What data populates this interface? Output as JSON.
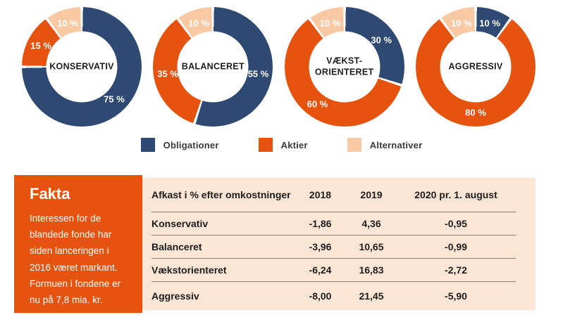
{
  "colors": {
    "obligationer": "#2e4a72",
    "aktier": "#e5530f",
    "alternativer": "#f9c9a3",
    "table_bg": "#fbe6d6",
    "fakta_bg": "#e5530f",
    "text_dark": "#1d1d1b"
  },
  "donuts": [
    {
      "title": "KONSERVATIV",
      "segments": [
        {
          "color_key": "obligationer",
          "pct": 75,
          "label": "75 %"
        },
        {
          "color_key": "aktier",
          "pct": 15,
          "label": "15 %"
        },
        {
          "color_key": "alternativer",
          "pct": 10,
          "label": "10 %"
        }
      ]
    },
    {
      "title": "BALANCERET",
      "segments": [
        {
          "color_key": "obligationer",
          "pct": 55,
          "label": "55 %"
        },
        {
          "color_key": "aktier",
          "pct": 35,
          "label": "35 %"
        },
        {
          "color_key": "alternativer",
          "pct": 10,
          "label": "10 %"
        }
      ]
    },
    {
      "title": "VÆKST-\nORIENTERET",
      "segments": [
        {
          "color_key": "obligationer",
          "pct": 30,
          "label": "30 %"
        },
        {
          "color_key": "aktier",
          "pct": 60,
          "label": "60 %"
        },
        {
          "color_key": "alternativer",
          "pct": 10,
          "label": "10 %"
        }
      ]
    },
    {
      "title": "AGGRESSIV",
      "segments": [
        {
          "color_key": "obligationer",
          "pct": 10,
          "label": "10 %"
        },
        {
          "color_key": "aktier",
          "pct": 80,
          "label": "80 %"
        },
        {
          "color_key": "alternativer",
          "pct": 10,
          "label": "10 %"
        }
      ]
    }
  ],
  "legend": [
    {
      "label": "Obligationer",
      "color_key": "obligationer"
    },
    {
      "label": "Aktier",
      "color_key": "aktier"
    },
    {
      "label": "Alternativer",
      "color_key": "alternativer"
    }
  ],
  "fakta": {
    "title": "Fakta",
    "body": "Interessen for de blandede fonde har siden lanceringen i 2016 været markant. Formuen i fondene er nu på 7,8 mia. kr."
  },
  "table": {
    "header_label": "Afkast i % efter omkostninger",
    "columns": [
      "2018",
      "2019",
      "2020 pr. 1. august"
    ],
    "rows": [
      {
        "label": "Konservativ",
        "values": [
          "-1,86",
          "4,36",
          "-0,95"
        ]
      },
      {
        "label": "Balanceret",
        "values": [
          "-3,96",
          "10,65",
          "-0,99"
        ]
      },
      {
        "label": "Vækstorienteret",
        "values": [
          "-6,24",
          "16,83",
          "-2,72"
        ]
      },
      {
        "label": "Aggressiv",
        "values": [
          "-8,00",
          "21,45",
          "-5,90"
        ]
      }
    ]
  },
  "chart_data": [
    {
      "type": "pie",
      "title": "KONSERVATIV",
      "categories": [
        "Obligationer",
        "Aktier",
        "Alternativer"
      ],
      "values": [
        75,
        15,
        10
      ],
      "legend_position": "bottom"
    },
    {
      "type": "pie",
      "title": "BALANCERET",
      "categories": [
        "Obligationer",
        "Aktier",
        "Alternativer"
      ],
      "values": [
        55,
        35,
        10
      ],
      "legend_position": "bottom"
    },
    {
      "type": "pie",
      "title": "VÆKSTORIENTERET",
      "categories": [
        "Obligationer",
        "Aktier",
        "Alternativer"
      ],
      "values": [
        30,
        60,
        10
      ],
      "legend_position": "bottom"
    },
    {
      "type": "pie",
      "title": "AGGRESSIV",
      "categories": [
        "Obligationer",
        "Aktier",
        "Alternativer"
      ],
      "values": [
        10,
        80,
        10
      ],
      "legend_position": "bottom"
    },
    {
      "type": "table",
      "title": "Afkast i % efter omkostninger",
      "columns": [
        "2018",
        "2019",
        "2020 pr. 1. august"
      ],
      "rows": [
        [
          "Konservativ",
          -1.86,
          4.36,
          -0.95
        ],
        [
          "Balanceret",
          -3.96,
          10.65,
          -0.99
        ],
        [
          "Vækstorienteret",
          -6.24,
          16.83,
          -2.72
        ],
        [
          "Aggressiv",
          -8.0,
          21.45,
          -5.9
        ]
      ]
    }
  ]
}
